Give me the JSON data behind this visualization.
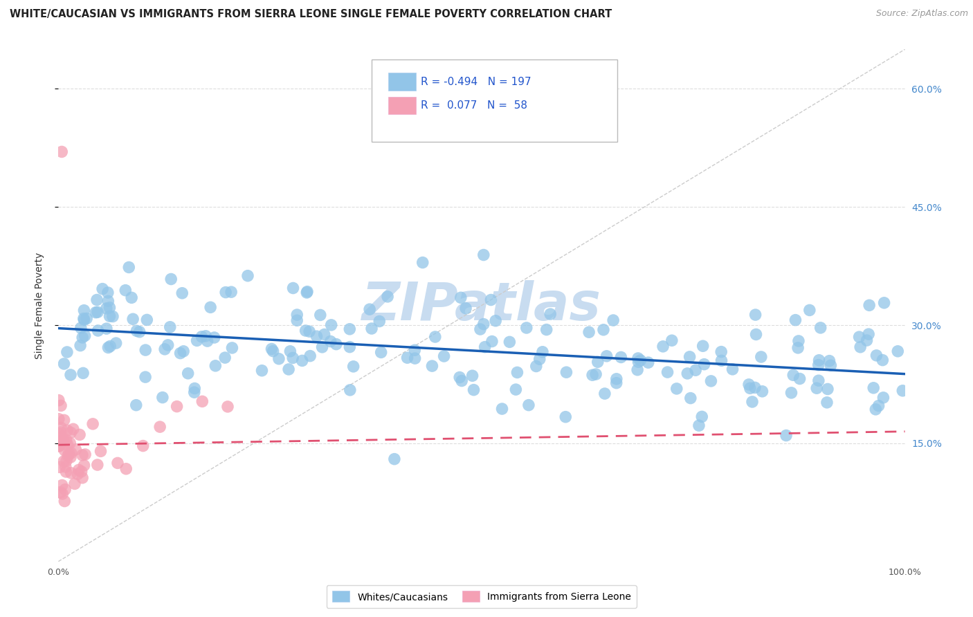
{
  "title": "WHITE/CAUCASIAN VS IMMIGRANTS FROM SIERRA LEONE SINGLE FEMALE POVERTY CORRELATION CHART",
  "source": "Source: ZipAtlas.com",
  "ylabel": "Single Female Poverty",
  "watermark": "ZIPatlas",
  "xlim": [
    0,
    1
  ],
  "ylim": [
    0,
    0.65
  ],
  "yticks": [
    0.15,
    0.3,
    0.45,
    0.6
  ],
  "ytick_labels": [
    "15.0%",
    "30.0%",
    "45.0%",
    "60.0%"
  ],
  "xtick_labels": [
    "0.0%",
    "",
    "",
    "",
    "",
    "",
    "",
    "",
    "",
    "",
    "100.0%"
  ],
  "blue_R": -0.494,
  "blue_N": 197,
  "pink_R": 0.077,
  "pink_N": 58,
  "blue_color": "#92C5E8",
  "pink_color": "#F4A0B4",
  "blue_line_color": "#1A5FB4",
  "pink_line_color": "#E05070",
  "diag_line_color": "#CCCCCC",
  "legend_label_blue": "Whites/Caucasians",
  "legend_label_pink": "Immigrants from Sierra Leone",
  "title_fontsize": 10.5,
  "source_fontsize": 9,
  "axis_label_fontsize": 10,
  "tick_fontsize": 9,
  "watermark_fontsize": 55,
  "watermark_color": "#C8DCF0",
  "background_color": "#FFFFFF",
  "grid_color": "#DDDDDD",
  "blue_line_start_y": 0.296,
  "blue_line_end_y": 0.238,
  "pink_line_start_y": 0.148,
  "pink_line_end_y": 0.165
}
